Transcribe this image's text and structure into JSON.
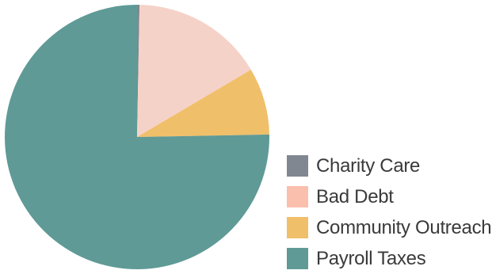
{
  "chart_data": {
    "type": "pie",
    "title": "",
    "legend_position": "right",
    "slices": [
      {
        "label": "Charity Care",
        "value": 0.3,
        "color": "#818790"
      },
      {
        "label": "Bad Debt",
        "value": 16.2,
        "color": "#f5d2c8"
      },
      {
        "label": "Community Outreach",
        "value": 8.2,
        "color": "#f0bf6a"
      },
      {
        "label": "Payroll Taxes",
        "value": 75.3,
        "color": "#5f9a96"
      }
    ],
    "legend": [
      {
        "label": "Charity Care",
        "color": "#818790"
      },
      {
        "label": "Bad Debt",
        "color": "#fbbfae"
      },
      {
        "label": "Community Outreach",
        "color": "#f0bf6a"
      },
      {
        "label": "Payroll Taxes",
        "color": "#5f9a96"
      }
    ]
  }
}
